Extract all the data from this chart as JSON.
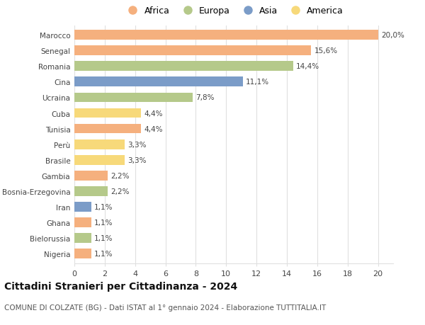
{
  "categories": [
    "Marocco",
    "Senegal",
    "Romania",
    "Cina",
    "Ucraina",
    "Cuba",
    "Tunisia",
    "Perù",
    "Brasile",
    "Gambia",
    "Bosnia-Erzegovina",
    "Iran",
    "Ghana",
    "Bielorussia",
    "Nigeria"
  ],
  "values": [
    20.0,
    15.6,
    14.4,
    11.1,
    7.8,
    4.4,
    4.4,
    3.3,
    3.3,
    2.2,
    2.2,
    1.1,
    1.1,
    1.1,
    1.1
  ],
  "labels": [
    "20,0%",
    "15,6%",
    "14,4%",
    "11,1%",
    "7,8%",
    "4,4%",
    "4,4%",
    "3,3%",
    "3,3%",
    "2,2%",
    "2,2%",
    "1,1%",
    "1,1%",
    "1,1%",
    "1,1%"
  ],
  "continents": [
    "Africa",
    "Africa",
    "Europa",
    "Asia",
    "Europa",
    "America",
    "Africa",
    "America",
    "America",
    "Africa",
    "Europa",
    "Asia",
    "Africa",
    "Europa",
    "Africa"
  ],
  "colors": {
    "Africa": "#F5B07E",
    "Europa": "#B5C98A",
    "Asia": "#7B9CC8",
    "America": "#F7D97A"
  },
  "xlim": [
    0,
    21
  ],
  "xticks": [
    0,
    2,
    4,
    6,
    8,
    10,
    12,
    14,
    16,
    18,
    20
  ],
  "title": "Cittadini Stranieri per Cittadinanza - 2024",
  "subtitle": "COMUNE DI COLZATE (BG) - Dati ISTAT al 1° gennaio 2024 - Elaborazione TUTTITALIA.IT",
  "background_color": "#ffffff",
  "grid_color": "#e0e0e0",
  "bar_height": 0.62,
  "label_fontsize": 7.5,
  "title_fontsize": 10,
  "subtitle_fontsize": 7.5,
  "ytick_fontsize": 7.5,
  "xtick_fontsize": 8,
  "legend_order": [
    "Africa",
    "Europa",
    "Asia",
    "America"
  ]
}
